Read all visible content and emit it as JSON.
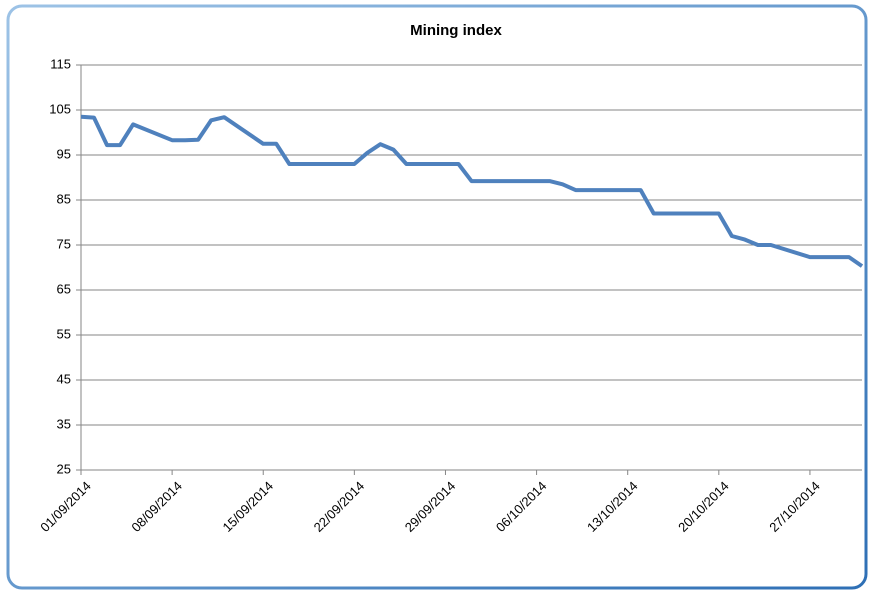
{
  "chart_data": {
    "type": "line",
    "title": "Mining index",
    "x": [
      "01/09/2014",
      "02/09/2014",
      "03/09/2014",
      "04/09/2014",
      "05/09/2014",
      "08/09/2014",
      "09/09/2014",
      "10/09/2014",
      "11/09/2014",
      "12/09/2014",
      "15/09/2014",
      "16/09/2014",
      "17/09/2014",
      "18/09/2014",
      "19/09/2014",
      "22/09/2014",
      "23/09/2014",
      "24/09/2014",
      "25/09/2014",
      "26/09/2014",
      "29/09/2014",
      "30/09/2014",
      "01/10/2014",
      "02/10/2014",
      "03/10/2014",
      "06/10/2014",
      "07/10/2014",
      "08/10/2014",
      "09/10/2014",
      "10/10/2014",
      "13/10/2014",
      "14/10/2014",
      "15/10/2014",
      "16/10/2014",
      "17/10/2014",
      "20/10/2014",
      "21/10/2014",
      "22/10/2014",
      "23/10/2014",
      "24/10/2014",
      "27/10/2014",
      "28/10/2014",
      "29/10/2014",
      "30/10/2014",
      "31/10/2014"
    ],
    "series": [
      {
        "name": "Mining index",
        "color": "#4f81bd",
        "values": [
          103.5,
          103.3,
          97.2,
          97.2,
          101.8,
          98.3,
          98.3,
          98.4,
          102.7,
          103.4,
          97.5,
          97.5,
          93,
          93,
          93,
          93,
          95.5,
          97.4,
          96.2,
          93,
          93,
          93,
          89.2,
          89.2,
          89.2,
          89.2,
          89.2,
          88.5,
          87.2,
          87.2,
          87.2,
          87.2,
          82,
          82,
          82,
          82,
          77,
          76.2,
          75,
          75,
          72.3,
          72.3,
          72.3,
          72.3,
          70.3
        ]
      }
    ],
    "xlim": [
      "01/09/2014",
      "31/10/2014"
    ],
    "xticks": [
      "01/09/2014",
      "08/09/2014",
      "15/09/2014",
      "22/09/2014",
      "29/09/2014",
      "06/10/2014",
      "13/10/2014",
      "20/10/2014",
      "27/10/2014"
    ],
    "ylim": [
      25,
      115
    ],
    "yticks": [
      25,
      35,
      45,
      55,
      65,
      75,
      85,
      95,
      105,
      115
    ],
    "grid": true
  }
}
